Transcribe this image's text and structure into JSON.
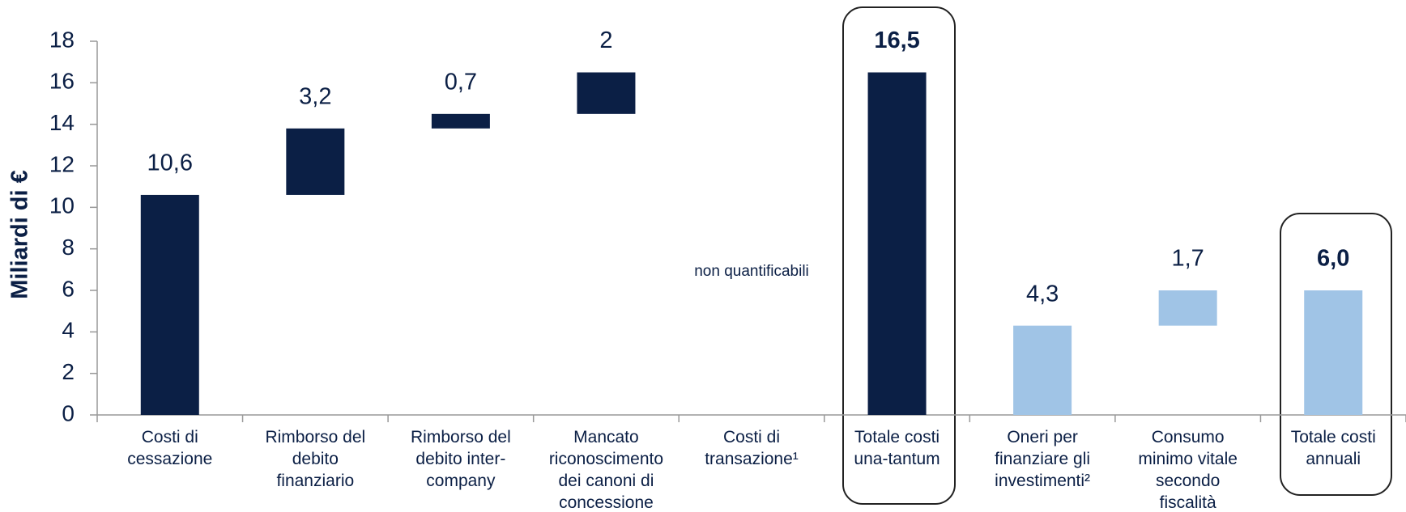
{
  "chart_data": {
    "type": "waterfall",
    "y_label": "Miliardi di €",
    "categories": [
      "Costi di cessazione",
      "Rimborso del debito finanziario",
      "Rimborso del debito inter-company",
      "Mancato riconoscimento dei canoni di concessione",
      "Costi di transazione¹",
      "Totale costi una-tantum",
      "Oneri per finanziare gli investimenti²",
      "Consumo minimo vitale secondo fiscalità generale",
      "Totale costi annuali"
    ],
    "values": [
      10.6,
      3.2,
      0.7,
      2,
      null,
      16.5,
      4.3,
      1.7,
      6.0
    ],
    "value_labels": [
      "10,6",
      "3,2",
      "0,7",
      "2",
      null,
      "16,5",
      "4,3",
      "1,7",
      "6,0"
    ],
    "measure": [
      "absolute",
      "relative",
      "relative",
      "relative",
      "relative",
      "total",
      "absolute",
      "relative",
      "total"
    ],
    "colors": [
      "#0b1f45",
      "#0b1f45",
      "#0b1f45",
      "#0b1f45",
      "#0b1f45",
      "#0b1f45",
      "#a0c4e6",
      "#a0c4e6",
      "#a0c4e6"
    ],
    "annotation": {
      "index": 4,
      "text": "non quantificabili"
    },
    "ylim": [
      0,
      18
    ],
    "yticks": [
      0,
      2,
      4,
      6,
      8,
      10,
      12,
      14,
      16,
      18
    ]
  }
}
